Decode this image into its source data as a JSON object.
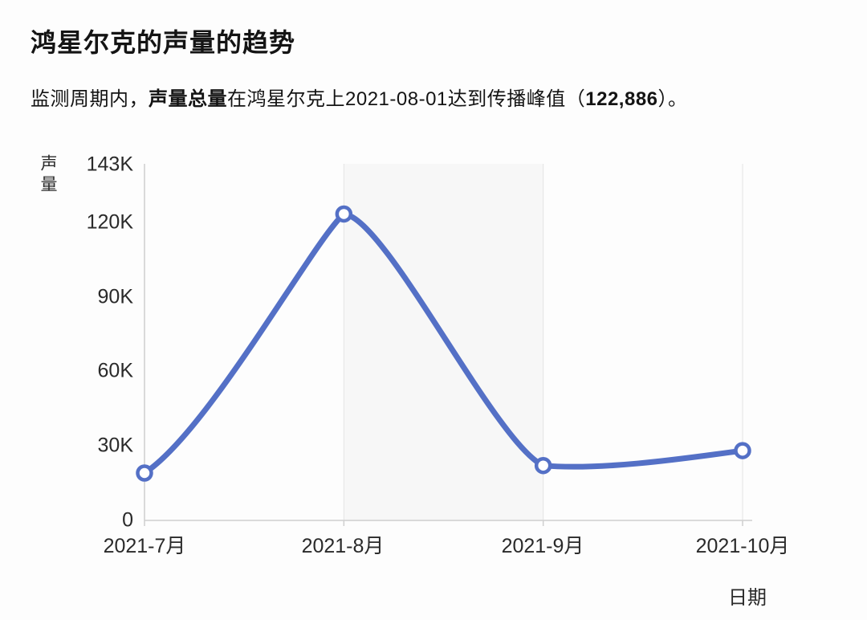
{
  "page": {
    "title": "鸿星尔克的声量的趋势",
    "subtitle": {
      "p1": "监测周期内，",
      "p2": "声量总量",
      "p3": "在鸿星尔克上2021-08-01达到传播峰值（",
      "p4": "122,886",
      "p5": "）。"
    }
  },
  "chart_data": {
    "type": "line",
    "title": "鸿星尔克的声量的趋势",
    "x": [
      "2021-7月",
      "2021-8月",
      "2021-9月",
      "2021-10月"
    ],
    "series": [
      {
        "name": "声量",
        "values": [
          19000,
          122886,
          22000,
          28000
        ]
      }
    ],
    "xlabel": "日期",
    "ylabel": "声量",
    "ylim": [
      0,
      143000
    ],
    "y_ticks": [
      "143K",
      "120K",
      "90K",
      "60K",
      "30K",
      "0"
    ],
    "y_tick_values": [
      143000,
      120000,
      90000,
      60000,
      30000,
      0
    ],
    "peak": {
      "date": "2021-08-01",
      "value": 122886,
      "value_label": "122,886"
    },
    "highlight_band": {
      "from_x": "2021-8月",
      "to_x": "2021-9月"
    },
    "grid": "vertical-only",
    "legend": "none",
    "smooth": true,
    "colors": {
      "line": "#5470C6",
      "marker_fill": "#ffffff",
      "band": "#f7f7f7",
      "gridline": "#e4e4e4",
      "axis": "#cfcfcf"
    }
  }
}
